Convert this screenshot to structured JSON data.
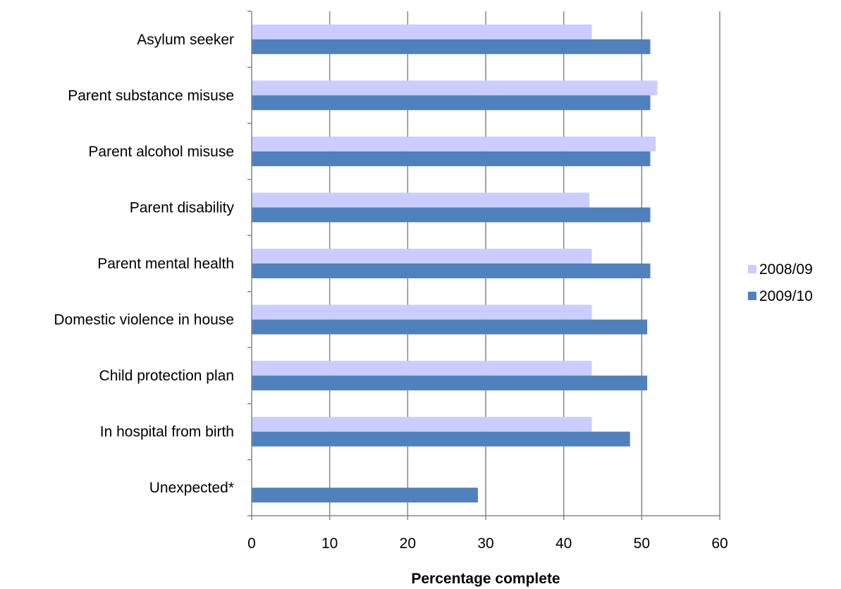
{
  "chart_data": {
    "type": "bar",
    "orientation": "horizontal",
    "title": "",
    "xlabel": "Percentage complete",
    "ylabel": "",
    "xlim": [
      0,
      60
    ],
    "x_ticks": [
      0,
      10,
      20,
      30,
      40,
      50,
      60
    ],
    "x_tick_labels": [
      "0",
      "10",
      "20",
      "30",
      "40",
      "50",
      "60"
    ],
    "grid": "vertical",
    "legend_position": "right",
    "categories": [
      "Asylum seeker",
      "Parent substance misuse",
      "Parent alcohol misuse",
      "Parent disability",
      "Parent mental health",
      "Domestic violence in house",
      "Child protection plan",
      "In hospital from birth",
      "Unexpected*"
    ],
    "series": [
      {
        "name": "2008/09",
        "color": "#ccccff",
        "values": [
          43.6,
          52.0,
          51.8,
          43.3,
          43.6,
          43.6,
          43.6,
          43.6,
          null
        ]
      },
      {
        "name": "2009/10",
        "color": "#4f81bd",
        "values": [
          51.1,
          51.1,
          51.1,
          51.1,
          51.1,
          50.7,
          50.7,
          48.5,
          29.0
        ]
      }
    ]
  }
}
